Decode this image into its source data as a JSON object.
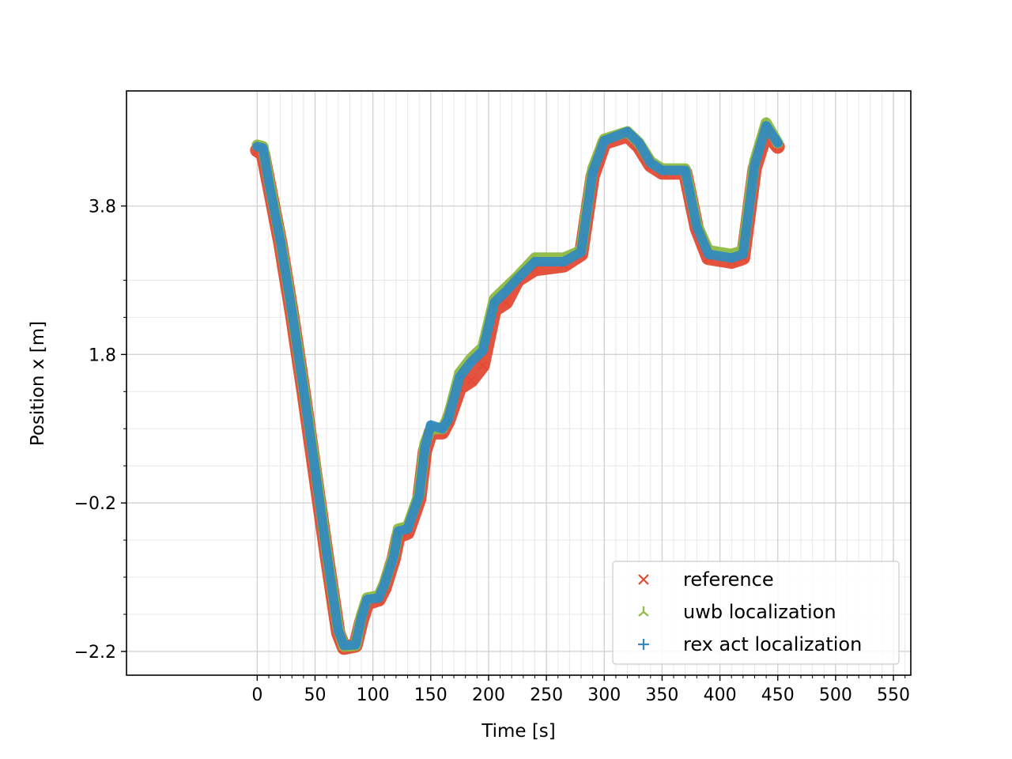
{
  "chart_data": {
    "type": "scatter",
    "title": "",
    "xlabel": "Time [s]",
    "ylabel": "Position x [m]",
    "xlim": [
      -113,
      565
    ],
    "ylim": [
      -2.52,
      5.35
    ],
    "xticks": [
      0,
      50,
      100,
      150,
      200,
      250,
      300,
      350,
      400,
      450,
      500,
      550
    ],
    "xtick_labels": [
      "0",
      "50",
      "100",
      "150",
      "200",
      "250",
      "300",
      "350",
      "400",
      "450",
      "500",
      "550"
    ],
    "yticks": [
      -2.2,
      -0.2,
      1.8,
      3.8
    ],
    "ytick_labels": [
      "−2.2",
      "−0.2",
      "1.8",
      "3.8"
    ],
    "grid": true,
    "legend_position": "bottom-right",
    "series": [
      {
        "name": "reference",
        "marker": "x",
        "color": "#e24a33",
        "points": [
          [
            0,
            4.55
          ],
          [
            5,
            4.5
          ],
          [
            10,
            4.1
          ],
          [
            20,
            3.3
          ],
          [
            30,
            2.35
          ],
          [
            40,
            1.3
          ],
          [
            50,
            0.2
          ],
          [
            60,
            -0.9
          ],
          [
            70,
            -1.95
          ],
          [
            75,
            -2.15
          ],
          [
            85,
            -2.12
          ],
          [
            90,
            -1.8
          ],
          [
            95,
            -1.55
          ],
          [
            105,
            -1.5
          ],
          [
            110,
            -1.35
          ],
          [
            118,
            -0.95
          ],
          [
            122,
            -0.65
          ],
          [
            130,
            -0.6
          ],
          [
            140,
            -0.15
          ],
          [
            145,
            0.5
          ],
          [
            150,
            0.75
          ],
          [
            160,
            0.75
          ],
          [
            165,
            0.9
          ],
          [
            175,
            1.35
          ],
          [
            185,
            1.45
          ],
          [
            195,
            1.65
          ],
          [
            205,
            2.4
          ],
          [
            215,
            2.5
          ],
          [
            225,
            2.8
          ],
          [
            240,
            2.95
          ],
          [
            265,
            3.0
          ],
          [
            280,
            3.15
          ],
          [
            290,
            4.2
          ],
          [
            300,
            4.65
          ],
          [
            320,
            4.75
          ],
          [
            330,
            4.6
          ],
          [
            340,
            4.35
          ],
          [
            350,
            4.25
          ],
          [
            370,
            4.25
          ],
          [
            380,
            3.5
          ],
          [
            390,
            3.1
          ],
          [
            410,
            3.05
          ],
          [
            420,
            3.1
          ],
          [
            430,
            4.3
          ],
          [
            440,
            4.8
          ],
          [
            450,
            4.6
          ]
        ]
      },
      {
        "name": "uwb localization",
        "marker": "tri_down",
        "color": "#8eba42",
        "points": [
          [
            0,
            4.62
          ],
          [
            5,
            4.6
          ],
          [
            10,
            4.15
          ],
          [
            20,
            3.35
          ],
          [
            30,
            2.4
          ],
          [
            40,
            1.35
          ],
          [
            50,
            0.3
          ],
          [
            60,
            -0.85
          ],
          [
            70,
            -1.9
          ],
          [
            75,
            -2.13
          ],
          [
            85,
            -2.12
          ],
          [
            90,
            -1.72
          ],
          [
            95,
            -1.48
          ],
          [
            105,
            -1.45
          ],
          [
            110,
            -1.28
          ],
          [
            118,
            -0.9
          ],
          [
            122,
            -0.55
          ],
          [
            130,
            -0.52
          ],
          [
            140,
            -0.08
          ],
          [
            145,
            0.6
          ],
          [
            150,
            0.8
          ],
          [
            160,
            0.8
          ],
          [
            165,
            0.95
          ],
          [
            175,
            1.55
          ],
          [
            185,
            1.75
          ],
          [
            195,
            1.9
          ],
          [
            205,
            2.55
          ],
          [
            215,
            2.7
          ],
          [
            225,
            2.85
          ],
          [
            240,
            3.1
          ],
          [
            265,
            3.1
          ],
          [
            280,
            3.2
          ],
          [
            290,
            4.3
          ],
          [
            300,
            4.7
          ],
          [
            320,
            4.8
          ],
          [
            330,
            4.65
          ],
          [
            340,
            4.4
          ],
          [
            350,
            4.3
          ],
          [
            370,
            4.3
          ],
          [
            380,
            3.55
          ],
          [
            390,
            3.2
          ],
          [
            410,
            3.15
          ],
          [
            420,
            3.2
          ],
          [
            430,
            4.4
          ],
          [
            440,
            4.92
          ],
          [
            450,
            4.65
          ]
        ]
      },
      {
        "name": "rex act localization",
        "marker": "plus",
        "color": "#348abd",
        "points": [
          [
            0,
            4.6
          ],
          [
            5,
            4.58
          ],
          [
            10,
            4.12
          ],
          [
            20,
            3.33
          ],
          [
            30,
            2.38
          ],
          [
            40,
            1.33
          ],
          [
            50,
            0.25
          ],
          [
            60,
            -0.87
          ],
          [
            70,
            -1.92
          ],
          [
            75,
            -2.12
          ],
          [
            85,
            -2.11
          ],
          [
            90,
            -1.75
          ],
          [
            95,
            -1.5
          ],
          [
            105,
            -1.48
          ],
          [
            110,
            -1.3
          ],
          [
            118,
            -0.92
          ],
          [
            122,
            -0.58
          ],
          [
            130,
            -0.55
          ],
          [
            140,
            -0.1
          ],
          [
            145,
            0.55
          ],
          [
            150,
            0.85
          ],
          [
            160,
            0.8
          ],
          [
            165,
            0.92
          ],
          [
            175,
            1.5
          ],
          [
            185,
            1.7
          ],
          [
            195,
            1.85
          ],
          [
            205,
            2.5
          ],
          [
            215,
            2.65
          ],
          [
            225,
            2.82
          ],
          [
            240,
            3.05
          ],
          [
            265,
            3.05
          ],
          [
            280,
            3.18
          ],
          [
            290,
            4.25
          ],
          [
            300,
            4.68
          ],
          [
            320,
            4.8
          ],
          [
            330,
            4.65
          ],
          [
            340,
            4.38
          ],
          [
            350,
            4.28
          ],
          [
            370,
            4.28
          ],
          [
            380,
            3.52
          ],
          [
            390,
            3.15
          ],
          [
            410,
            3.1
          ],
          [
            420,
            3.15
          ],
          [
            430,
            4.35
          ],
          [
            440,
            4.88
          ],
          [
            450,
            4.65
          ]
        ]
      }
    ]
  }
}
